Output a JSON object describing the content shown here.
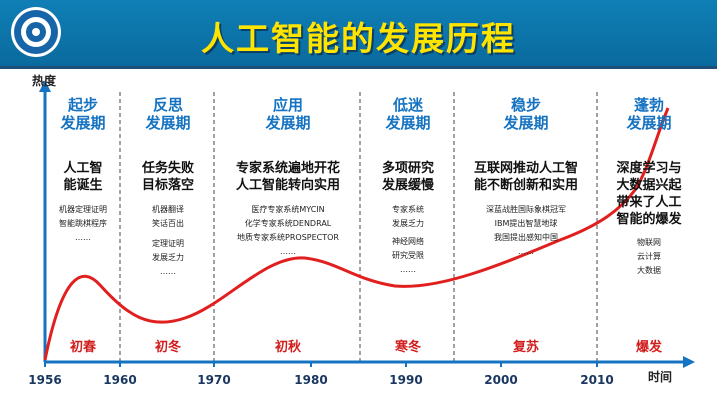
{
  "title": "人工智能的发展历程",
  "logo": "university-seal-icon",
  "y_axis_label": "热度",
  "x_axis_label": "时间",
  "years": [
    "1956",
    "1960",
    "1970",
    "1980",
    "1990",
    "2000",
    "2010"
  ],
  "colors": {
    "header": "#0f7fb5",
    "title": "#ffe400",
    "phase": "#1573c2",
    "curve": "#e21f1f",
    "season": "#d21d1d",
    "axis": "#1573c2"
  },
  "stages": [
    {
      "phase": [
        "起步",
        "发展期"
      ],
      "headline": [
        "人工智",
        "能诞生"
      ],
      "details": [
        "机器定理证明",
        "智能跳棋程序",
        "……"
      ],
      "season": "初春"
    },
    {
      "phase": [
        "反思",
        "发展期"
      ],
      "headline": [
        "任务失败",
        "目标落空"
      ],
      "details": [
        "机器翻译",
        "笑话百出",
        "定理证明",
        "发展乏力",
        "……"
      ],
      "season": "初冬"
    },
    {
      "phase": [
        "应用",
        "发展期"
      ],
      "headline": [
        "专家系统遍地开花",
        "人工智能转向实用"
      ],
      "details": [
        "医疗专家系统MYCIN",
        "化学专家系统DENDRAL",
        "地质专家系统PROSPECTOR",
        "……"
      ],
      "season": "初秋"
    },
    {
      "phase": [
        "低迷",
        "发展期"
      ],
      "headline": [
        "多项研究",
        "发展缓慢"
      ],
      "details": [
        "专家系统",
        "发展乏力",
        "神经网络",
        "研究受限",
        "……"
      ],
      "season": "寒冬"
    },
    {
      "phase": [
        "稳步",
        "发展期"
      ],
      "headline": [
        "互联网推动人工智",
        "能不断创新和实用"
      ],
      "details": [
        "深蓝战胜国际象棋冠军",
        "IBM提出智慧地球",
        "我国提出感知中国",
        "……"
      ],
      "season": "复苏"
    },
    {
      "phase": [
        "蓬勃",
        "发展期"
      ],
      "headline": [
        "深度学习与",
        "大数据兴起",
        "带来了人工",
        "智能的爆发"
      ],
      "details": [
        "物联网",
        "云计算",
        "大数据"
      ],
      "season": "爆发"
    }
  ]
}
